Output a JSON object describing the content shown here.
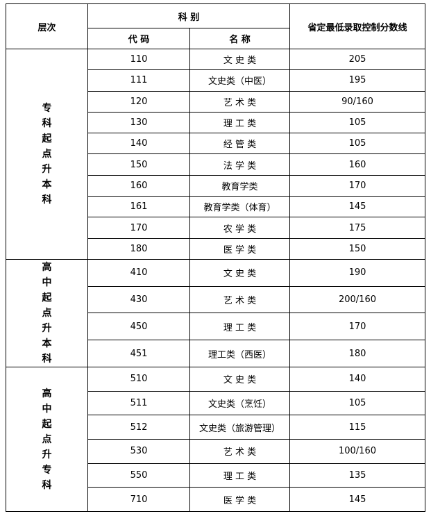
{
  "table": {
    "header": {
      "level": "层次",
      "category": "科 别",
      "code": "代 码",
      "name": "名 称",
      "score": "省定最低录取控制分数线"
    },
    "groups": [
      {
        "level": "专科起点升本科",
        "rows": [
          [
            "110",
            "文 史 类",
            "205"
          ],
          [
            "111",
            "文史类（中医）",
            "195"
          ],
          [
            "120",
            "艺 术 类",
            "90/160"
          ],
          [
            "130",
            "理 工 类",
            "105"
          ],
          [
            "140",
            "经 管 类",
            "105"
          ],
          [
            "150",
            "法 学 类",
            "160"
          ],
          [
            "160",
            "教育学类",
            "170"
          ],
          [
            "161",
            "教育学类（体育）",
            "145"
          ],
          [
            "170",
            "农 学 类",
            "175"
          ],
          [
            "180",
            "医 学 类",
            "150"
          ]
        ]
      },
      {
        "level": "高中起点升本科",
        "rows": [
          [
            "410",
            "文 史 类",
            "190"
          ],
          [
            "430",
            "艺 术 类",
            "200/160"
          ],
          [
            "450",
            "理 工 类",
            "170"
          ],
          [
            "451",
            "理工类（西医）",
            "180"
          ]
        ]
      },
      {
        "level": "高中起点升专科",
        "rows": [
          [
            "510",
            "文 史 类",
            "140"
          ],
          [
            "511",
            "文史类（烹饪）",
            "105"
          ],
          [
            "512",
            "文史类（旅游管理）",
            "115"
          ],
          [
            "530",
            "艺 术 类",
            "100/160"
          ],
          [
            "550",
            "理 工 类",
            "135"
          ],
          [
            "710",
            "医 学 类",
            "145"
          ]
        ]
      }
    ]
  }
}
